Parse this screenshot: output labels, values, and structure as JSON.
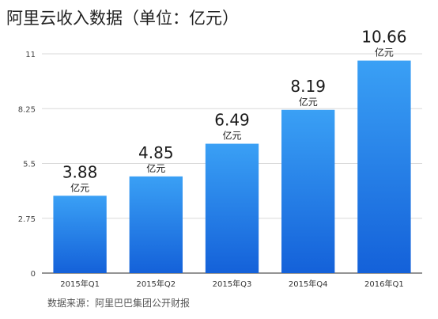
{
  "title": "阿里云收入数据（单位：亿元）",
  "source": "数据来源：阿里巴巴集团公开财报",
  "chart_data": {
    "type": "bar",
    "title": "阿里云收入数据（单位：亿元）",
    "categories": [
      "2015年Q1",
      "2015年Q2",
      "2015年Q3",
      "2015年Q4",
      "2016年Q1"
    ],
    "values": [
      3.88,
      4.85,
      6.49,
      8.19,
      10.66
    ],
    "value_unit": "亿元",
    "xlabel": "",
    "ylabel": "",
    "ylim": [
      0,
      11
    ],
    "yticks": [
      "0",
      "2.75",
      "5.5",
      "8.25",
      "11"
    ],
    "grid": true,
    "legend": "none",
    "colors": {
      "bar_top": "#3aa0f5",
      "bar_bottom": "#1461d9",
      "grid": "#d9d9d9",
      "axis": "#555555"
    }
  }
}
